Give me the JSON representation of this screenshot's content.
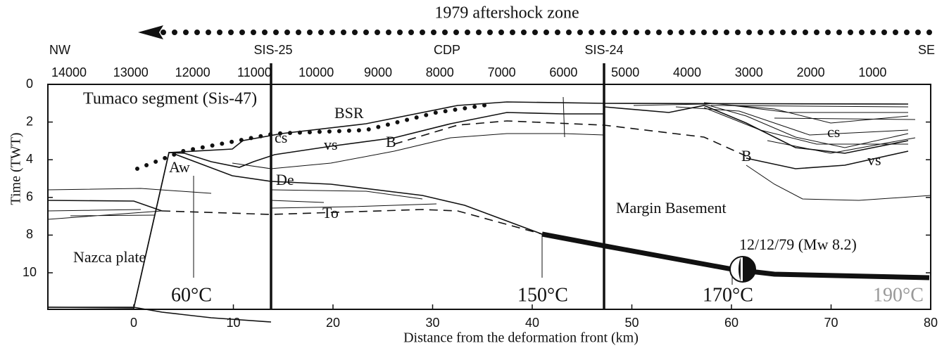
{
  "header": {
    "title": "1979 aftershock zone",
    "left": "NW",
    "right": "SE"
  },
  "profiles": [
    "SIS-25",
    "SIS-24"
  ],
  "cdp": {
    "label": "CDP",
    "ticks": [
      14000,
      13000,
      12000,
      11000,
      10000,
      9000,
      8000,
      7000,
      6000,
      5000,
      4000,
      3000,
      2000,
      1000
    ]
  },
  "x_axis": {
    "label": "Distance from the deformation front (km)",
    "ticks": [
      0,
      10,
      20,
      30,
      40,
      50,
      60,
      70,
      80
    ]
  },
  "y_axis": {
    "label": "Time (TWT)",
    "ticks": [
      0,
      2,
      4,
      6,
      8,
      10
    ]
  },
  "annotations": {
    "segment": "Tumaco segment (Sis-47)",
    "bsr": "BSR",
    "cs_left": "cs",
    "vs_left": "vs",
    "b_left": "B",
    "aw": "Aw",
    "de": "De",
    "to": "To",
    "basement": "Margin Basement",
    "nazca": "Nazca plate",
    "event": "12/12/79 (Mw 8.2)",
    "cs_right": "cs",
    "b_right": "B",
    "vs_right": "vs"
  },
  "temperatures": [
    "60°C",
    "150°C",
    "170°C",
    "190°C"
  ]
}
